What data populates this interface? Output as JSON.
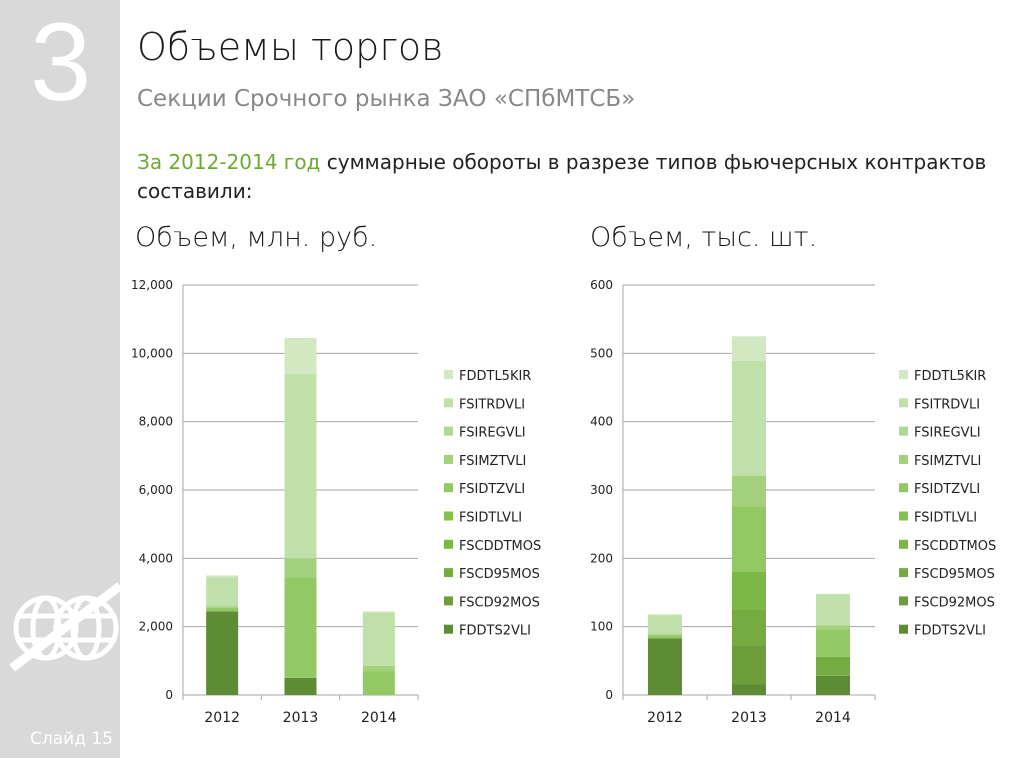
{
  "slide": {
    "number": "3",
    "label": "Слайд 15"
  },
  "title": "Объемы торгов",
  "subtitle": "Секции Срочного рынка ЗАО «СПбМТСБ»",
  "summary": {
    "highlight": "За 2012-2014 год",
    "rest": " суммарные обороты в разрезе типов фьючерсных контрактов составили:"
  },
  "colors": {
    "accent": "#6ea933",
    "sidebar": "#d9d9d9",
    "grid": "#a6a6a6"
  },
  "legend_order": [
    "FDDTL5KIR",
    "FSITRDVLI",
    "FSIREGVLI",
    "FSIMZTVLI",
    "FSIDTZVLI",
    "FSIDTLVLI",
    "FSCDDTMOS",
    "FSCD95MOS",
    "FSCD92MOS",
    "FDDTS2VLI"
  ],
  "series_colors": {
    "FDDTS2VLI": "#5d8c34",
    "FSCD92MOS": "#6d9e3b",
    "FSCD95MOS": "#75ab41",
    "FSCDDTMOS": "#7cb845",
    "FSIDTLVLI": "#84c14d",
    "FSIDTZVLI": "#93c964",
    "FSIMZTVLI": "#a3d07c",
    "FSIREGVLI": "#b1d894",
    "FSITRDVLI": "#c0e0aa",
    "FDDTL5KIR": "#d1e8c1"
  },
  "chart_data": [
    {
      "type": "bar",
      "stacked": true,
      "title": "Объем, млн. руб.",
      "categories": [
        "2012",
        "2013",
        "2014"
      ],
      "ylim": [
        0,
        12000
      ],
      "yticks": [
        0,
        2000,
        4000,
        6000,
        8000,
        10000,
        12000
      ],
      "ytick_labels": [
        "0",
        "2,000",
        "4,000",
        "6,000",
        "8,000",
        "10,000",
        "12,000"
      ],
      "grid": true,
      "legend_position": "right",
      "series": [
        {
          "name": "FDDTS2VLI",
          "values": [
            2450,
            500,
            0
          ]
        },
        {
          "name": "FSCD92MOS",
          "values": [
            0,
            0,
            0
          ]
        },
        {
          "name": "FSCD95MOS",
          "values": [
            0,
            0,
            0
          ]
        },
        {
          "name": "FSCDDTMOS",
          "values": [
            0,
            0,
            0
          ]
        },
        {
          "name": "FSIDTLVLI",
          "values": [
            0,
            0,
            0
          ]
        },
        {
          "name": "FSIDTZVLI",
          "values": [
            100,
            2950,
            700
          ]
        },
        {
          "name": "FSIMZTVLI",
          "values": [
            50,
            550,
            150
          ]
        },
        {
          "name": "FSIREGVLI",
          "values": [
            0,
            0,
            0
          ]
        },
        {
          "name": "FSITRDVLI",
          "values": [
            850,
            5400,
            1550
          ]
        },
        {
          "name": "FDDTL5KIR",
          "values": [
            50,
            1050,
            50
          ]
        }
      ]
    },
    {
      "type": "bar",
      "stacked": true,
      "title": "Объем, тыс. шт.",
      "categories": [
        "2012",
        "2013",
        "2014"
      ],
      "ylim": [
        0,
        600
      ],
      "yticks": [
        0,
        100,
        200,
        300,
        400,
        500,
        600
      ],
      "ytick_labels": [
        "0",
        "100",
        "200",
        "300",
        "400",
        "500",
        "600"
      ],
      "grid": true,
      "legend_position": "right",
      "series": [
        {
          "name": "FDDTS2VLI",
          "values": [
            83,
            16,
            28
          ]
        },
        {
          "name": "FSCD92MOS",
          "values": [
            0,
            57,
            0
          ]
        },
        {
          "name": "FSCD95MOS",
          "values": [
            0,
            52,
            28
          ]
        },
        {
          "name": "FSCDDTMOS",
          "values": [
            0,
            56,
            0
          ]
        },
        {
          "name": "FSIDTLVLI",
          "values": [
            0,
            0,
            0
          ]
        },
        {
          "name": "FSIDTZVLI",
          "values": [
            4,
            95,
            40
          ]
        },
        {
          "name": "FSIMZTVLI",
          "values": [
            2,
            45,
            6
          ]
        },
        {
          "name": "FSIREGVLI",
          "values": [
            0,
            0,
            0
          ]
        },
        {
          "name": "FSITRDVLI",
          "values": [
            28,
            168,
            45
          ]
        },
        {
          "name": "FDDTL5KIR",
          "values": [
            1,
            36,
            1
          ]
        }
      ]
    }
  ]
}
